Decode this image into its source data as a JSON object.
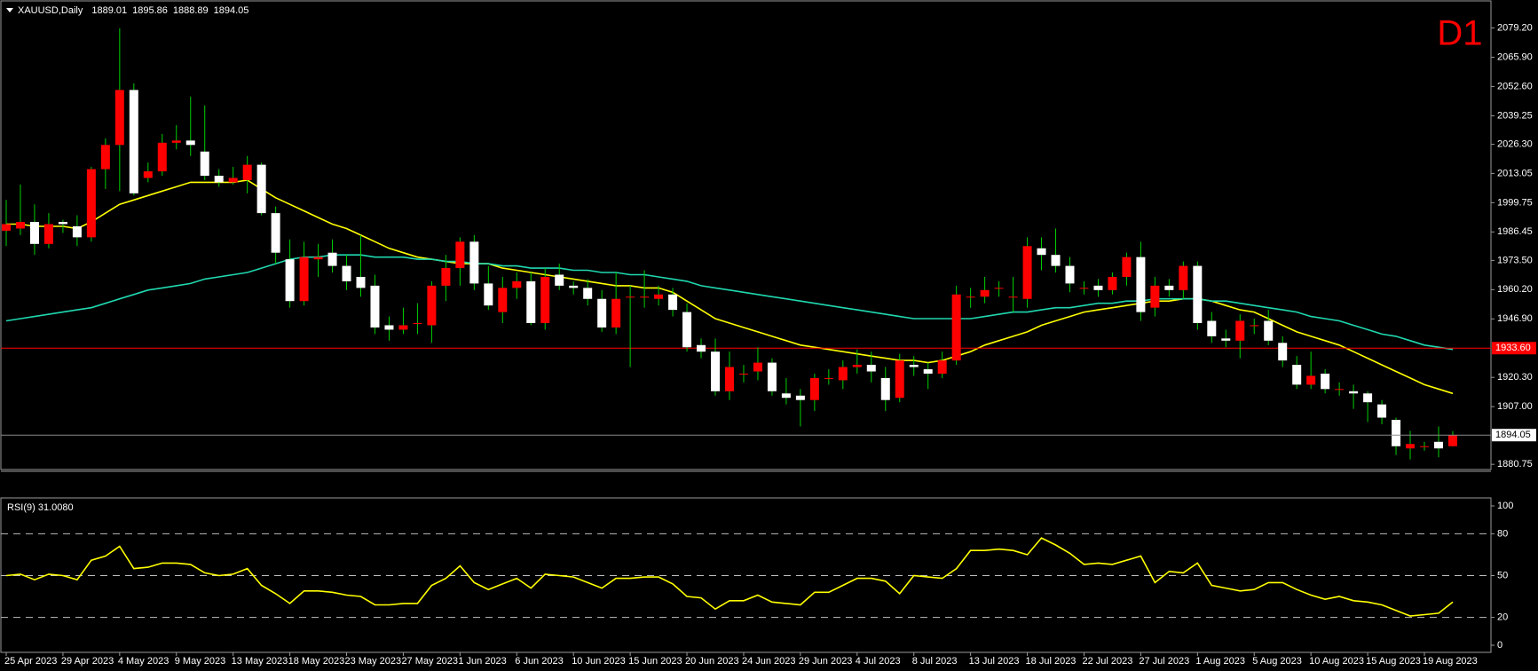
{
  "chart_data": [
    {
      "type": "candlestick",
      "title": "XAUUSD,Daily",
      "annotation": "D1",
      "categories": [
        "25 Apr 2023",
        null,
        null,
        null,
        "29 Apr 2023",
        null,
        null,
        null,
        "4 May 2023",
        null,
        null,
        null,
        "9 May 2023",
        null,
        null,
        null,
        "13 May 2023",
        null,
        null,
        null,
        "18 May 2023",
        null,
        null,
        null,
        "23 May 2023",
        null,
        null,
        null,
        "27 May 2023",
        null,
        null,
        null,
        "1 Jun 2023",
        null,
        null,
        null,
        "6 Jun 2023",
        null,
        null,
        null,
        "10 Jun 2023",
        null,
        null,
        null,
        "15 Jun 2023",
        null,
        null,
        null,
        "20 Jun 2023",
        null,
        null,
        null,
        "24 Jun 2023",
        null,
        null,
        null,
        "29 Jun 2023",
        null,
        null,
        null,
        "4 Jul 2023",
        null,
        null,
        null,
        "8 Jul 2023",
        null,
        null,
        null,
        "13 Jul 2023",
        null,
        null,
        null,
        "18 Jul 2023",
        null,
        null,
        null,
        "22 Jul 2023",
        null,
        null,
        null,
        "27 Jul 2023",
        null,
        null,
        null,
        "1 Aug 2023",
        null,
        null,
        null,
        "5 Aug 2023",
        null,
        null,
        null,
        "10 Aug 2023",
        null,
        null,
        null,
        "15 Aug 2023",
        null,
        null,
        null,
        "19 Aug 2023",
        null,
        null
      ],
      "open": [
        1987,
        1988,
        1991,
        1981,
        1991,
        1989,
        1984,
        2015,
        2026,
        2051,
        2011,
        2014,
        2027,
        2028,
        2023,
        2012,
        2009,
        2010,
        2017,
        1995,
        1974,
        1955,
        1974,
        1977,
        1971,
        1966,
        1962,
        1944,
        1942,
        1945,
        1944,
        1962,
        1970,
        1982,
        1963,
        1950,
        1961,
        1964,
        1945,
        1967,
        1962,
        1961,
        1956,
        1943,
        1957,
        1957,
        1956,
        1958,
        1950,
        1935,
        1932,
        1914,
        1922,
        1923,
        1927,
        1913,
        1912,
        1910,
        1920,
        1919,
        1925,
        1926,
        1920,
        1911,
        1926,
        1924,
        1922,
        1928,
        1957,
        1957,
        1961,
        1957,
        1956,
        1979,
        1976,
        1971,
        1961,
        1962,
        1960,
        1966,
        1975,
        1952,
        1962,
        1960,
        1971,
        1946,
        1938,
        1937,
        1944,
        1946,
        1936,
        1926,
        1917,
        1922,
        1915,
        1914,
        1913,
        1908,
        1901,
        1888,
        1889,
        1891,
        1889.01
      ],
      "high": [
        2001,
        2008,
        1999,
        1995,
        1992,
        1994,
        2016,
        2029,
        2079,
        2054,
        2018,
        2031,
        2035,
        2048,
        2044,
        2015,
        2016,
        2021,
        2018,
        1998,
        1983,
        1982,
        1981,
        1983,
        1976,
        1985,
        1967,
        1948,
        1952,
        1954,
        1964,
        1976,
        1984,
        1985,
        1971,
        1966,
        1968,
        1968,
        1970,
        1972,
        1964,
        1965,
        1960,
        1968,
        1962,
        1969,
        1962,
        1961,
        1954,
        1938,
        1938,
        1932,
        1926,
        1934,
        1929,
        1920,
        1915,
        1922,
        1924,
        1928,
        1933,
        1932,
        1925,
        1931,
        1930,
        1927,
        1932,
        1962,
        1961,
        1966,
        1964,
        1966,
        1984,
        1984,
        1988,
        1975,
        1964,
        1965,
        1968,
        1977,
        1982,
        1966,
        1965,
        1973,
        1973,
        1950,
        1942,
        1949,
        1947,
        1951,
        1939,
        1930,
        1932,
        1924,
        1918,
        1917,
        1914,
        1910,
        1902,
        1896,
        1891,
        1898,
        1895.86
      ],
      "low": [
        1980,
        1985,
        1976,
        1979,
        1986,
        1980,
        1982,
        2006,
        2005,
        2003,
        2009,
        2012,
        2024,
        2021,
        2010,
        2007,
        2008,
        2004,
        1994,
        1972,
        1952,
        1953,
        1966,
        1968,
        1960,
        1957,
        1940,
        1937,
        1940,
        1940,
        1936,
        1955,
        1962,
        1960,
        1951,
        1945,
        1956,
        1944,
        1942,
        1960,
        1958,
        1953,
        1941,
        1940,
        1925,
        1952,
        1953,
        1948,
        1932,
        1929,
        1912,
        1910,
        1918,
        1919,
        1912,
        1908,
        1898,
        1905,
        1917,
        1915,
        1922,
        1918,
        1905,
        1909,
        1921,
        1915,
        1920,
        1926,
        1952,
        1954,
        1957,
        1950,
        1952,
        1969,
        1968,
        1959,
        1958,
        1957,
        1958,
        1962,
        1946,
        1948,
        1957,
        1956,
        1942,
        1936,
        1934,
        1929,
        1940,
        1935,
        1925,
        1915,
        1915,
        1913,
        1912,
        1906,
        1900,
        1899,
        1885,
        1883,
        1887,
        1884,
        1888.89
      ],
      "close": [
        1990,
        1991,
        1981,
        1990,
        1990,
        1984,
        2015,
        2026,
        2051,
        2004,
        2014,
        2027,
        2028,
        2026,
        2012,
        2009,
        2011,
        2017,
        1995,
        1977,
        1955,
        1975,
        1975,
        1971,
        1964,
        1961,
        1943,
        1942,
        1944,
        1945,
        1962,
        1970,
        1982,
        1963,
        1953,
        1961,
        1964,
        1945,
        1966,
        1962,
        1961,
        1956,
        1943,
        1956,
        1957,
        1957,
        1958,
        1951,
        1934,
        1932,
        1914,
        1925,
        1922,
        1927,
        1914,
        1911,
        1910,
        1920,
        1920,
        1925,
        1926,
        1923,
        1910,
        1928,
        1925,
        1922,
        1928,
        1958,
        1957,
        1960,
        1961,
        1957,
        1980,
        1976,
        1971,
        1963,
        1961,
        1960,
        1966,
        1975,
        1950,
        1962,
        1960,
        1971,
        1945,
        1939,
        1937,
        1946,
        1944,
        1937,
        1928,
        1917,
        1921,
        1915,
        1915,
        1913,
        1909,
        1902,
        1889,
        1890,
        1889,
        1888,
        1894.05
      ],
      "up_color": "#ff0000",
      "down_color": "#ffffff",
      "wick_color": "#00d000",
      "series": [
        {
          "color": "#ffff00",
          "values": [
            1990,
            1990,
            1989,
            1989,
            1989,
            1988,
            1991,
            1995,
            1999,
            2001,
            2003,
            2005,
            2007,
            2009,
            2009,
            2009,
            2009,
            2010,
            2006,
            2002,
            1999,
            1996,
            1993,
            1990,
            1988,
            1985,
            1982,
            1979,
            1977,
            1975,
            1974,
            1973,
            1972,
            1972,
            1972,
            1970,
            1969,
            1968,
            1967,
            1966,
            1965,
            1964,
            1963,
            1962,
            1962,
            1961,
            1961,
            1959,
            1955,
            1951,
            1947,
            1945,
            1943,
            1941,
            1939,
            1937,
            1935,
            1934,
            1933,
            1932,
            1931,
            1930,
            1929,
            1928,
            1928,
            1927,
            1928,
            1930,
            1932,
            1935,
            1937,
            1939,
            1941,
            1944,
            1946,
            1948,
            1950,
            1951,
            1952,
            1953,
            1954,
            1955,
            1955,
            1956,
            1956,
            1955,
            1953,
            1951,
            1950,
            1947,
            1944,
            1941,
            1939,
            1937,
            1935,
            1932,
            1929,
            1926,
            1923,
            1920,
            1917,
            1915,
            1913
          ]
        },
        {
          "color": "#20d8b0",
          "values": [
            1946,
            1947,
            1948,
            1949,
            1950,
            1951,
            1952,
            1954,
            1956,
            1958,
            1960,
            1961,
            1962,
            1963,
            1965,
            1966,
            1967,
            1968,
            1970,
            1972,
            1974,
            1975,
            1975,
            1976,
            1976,
            1976,
            1975,
            1975,
            1975,
            1974,
            1974,
            1973,
            1973,
            1972,
            1972,
            1971,
            1971,
            1970,
            1970,
            1970,
            1969,
            1969,
            1968,
            1968,
            1967,
            1967,
            1966,
            1965,
            1964,
            1962,
            1961,
            1960,
            1959,
            1958,
            1957,
            1956,
            1955,
            1954,
            1953,
            1952,
            1951,
            1950,
            1949,
            1948,
            1947,
            1947,
            1947,
            1947,
            1947,
            1948,
            1949,
            1950,
            1950,
            1951,
            1952,
            1952,
            1953,
            1954,
            1954,
            1955,
            1955,
            1956,
            1956,
            1956,
            1956,
            1955,
            1955,
            1954,
            1953,
            1952,
            1951,
            1950,
            1948,
            1947,
            1946,
            1944,
            1942,
            1940,
            1939,
            1937,
            1935,
            1934,
            1933
          ]
        }
      ],
      "level": {
        "value": 1933.6,
        "label": "1933.60",
        "color": "#ff0000"
      },
      "ylim": [
        1878.4,
        2089.9
      ],
      "yticks": [
        {
          "value": 2079.2,
          "label": "2079.20"
        },
        {
          "value": 2065.9,
          "label": "2065.90"
        },
        {
          "value": 2052.6,
          "label": "2052.60"
        },
        {
          "value": 2039.25,
          "label": "2039.25"
        },
        {
          "value": 2026.3,
          "label": "2026.30"
        },
        {
          "value": 2013.05,
          "label": "2013.05"
        },
        {
          "value": 1999.75,
          "label": "1999.75"
        },
        {
          "value": 1986.45,
          "label": "1986.45"
        },
        {
          "value": 1973.5,
          "label": "1973.50"
        },
        {
          "value": 1960.2,
          "label": "1960.20"
        },
        {
          "value": 1946.9,
          "label": "1946.90"
        },
        {
          "value": 1920.3,
          "label": "1920.30"
        },
        {
          "value": 1907,
          "label": "1907.00"
        },
        {
          "value": 1880.75,
          "label": "1880.75"
        }
      ]
    },
    {
      "type": "line",
      "title": "RSI(9) 31.0080",
      "series": [
        {
          "color": "#ffff00",
          "values": [
            50,
            51,
            47,
            51,
            50,
            47,
            61,
            64,
            71,
            55,
            56,
            59,
            59,
            58,
            52,
            50,
            51,
            55,
            43,
            37,
            30,
            39,
            39,
            38,
            36,
            35,
            29,
            29,
            30,
            30,
            43,
            48,
            57,
            45,
            40,
            44,
            48,
            41,
            51,
            50,
            49,
            45,
            41,
            48,
            48,
            49,
            49,
            44,
            35,
            34,
            26,
            32,
            32,
            36,
            31,
            30,
            29,
            38,
            38,
            43,
            48,
            48,
            46,
            37,
            50,
            49,
            48,
            55,
            68,
            68,
            69,
            68,
            65,
            77,
            72,
            66,
            58,
            59,
            58,
            61,
            64,
            45,
            53,
            52,
            59,
            43,
            41,
            39,
            40,
            45,
            45,
            40,
            36,
            33,
            35,
            32,
            31,
            29,
            25,
            21,
            22,
            23,
            31
          ]
        }
      ],
      "levels": [
        80,
        50,
        20
      ],
      "ylim": [
        0,
        100
      ],
      "yticks": [
        0,
        20,
        50,
        80,
        100
      ]
    }
  ]
}
